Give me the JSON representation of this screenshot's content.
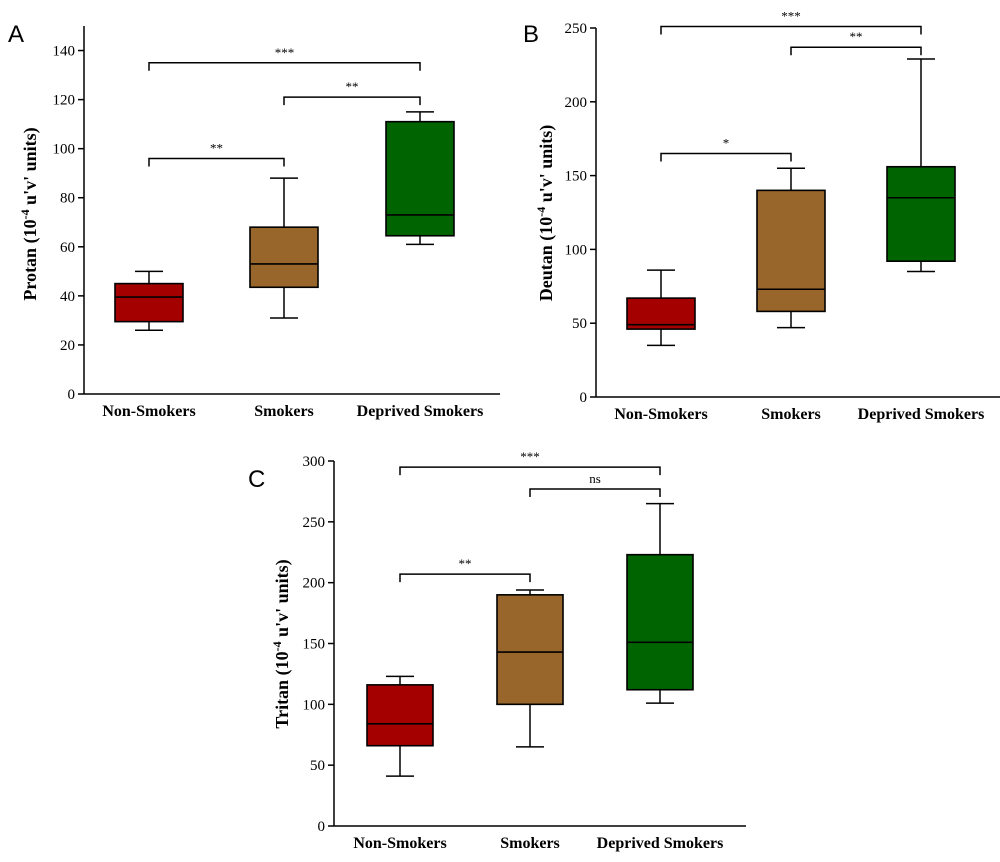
{
  "colors": {
    "Non-Smokers": "#a50000",
    "Smokers": "#98652a",
    "Deprived Smokers": "#006400"
  },
  "chart_data": [
    {
      "panel": "A",
      "type": "box",
      "ylabel": "Protan (10",
      "ylabel_sup": "-4",
      "ylabel_rest": " u'v' units)",
      "categories": [
        "Non-Smokers",
        "Smokers",
        "Deprived Smokers"
      ],
      "ylim": [
        0,
        150
      ],
      "yticks": [
        0,
        20,
        40,
        60,
        80,
        100,
        120,
        140
      ],
      "boxes": [
        {
          "name": "Non-Smokers",
          "min": 26,
          "q1": 29.5,
          "median": 39.5,
          "q3": 45,
          "max": 50
        },
        {
          "name": "Smokers",
          "min": 31,
          "q1": 43.5,
          "median": 53,
          "q3": 68,
          "max": 88
        },
        {
          "name": "Deprived Smokers",
          "min": 61,
          "q1": 64.5,
          "median": 73,
          "q3": 111,
          "max": 115
        }
      ],
      "comparisons": [
        {
          "from": 0,
          "to": 1,
          "y": 96,
          "label": "**"
        },
        {
          "from": 1,
          "to": 2,
          "y": 121,
          "label": "**"
        },
        {
          "from": 0,
          "to": 2,
          "y": 135,
          "label": "***"
        }
      ]
    },
    {
      "panel": "B",
      "type": "box",
      "ylabel": "Deutan (10",
      "ylabel_sup": "-4",
      "ylabel_rest": " u'v' units)",
      "categories": [
        "Non-Smokers",
        "Smokers",
        "Deprived Smokers"
      ],
      "ylim": [
        0,
        250
      ],
      "yticks": [
        0,
        50,
        100,
        150,
        200,
        250
      ],
      "boxes": [
        {
          "name": "Non-Smokers",
          "min": 35,
          "q1": 46,
          "median": 49,
          "q3": 67,
          "max": 86
        },
        {
          "name": "Smokers",
          "min": 47,
          "q1": 58,
          "median": 73,
          "q3": 140,
          "max": 155
        },
        {
          "name": "Deprived Smokers",
          "min": 85,
          "q1": 92,
          "median": 135,
          "q3": 156,
          "max": 229
        }
      ],
      "comparisons": [
        {
          "from": 0,
          "to": 1,
          "y": 165,
          "label": "*"
        },
        {
          "from": 1,
          "to": 2,
          "y": 237,
          "label": "**"
        },
        {
          "from": 0,
          "to": 2,
          "y": 251,
          "label": "***"
        }
      ]
    },
    {
      "panel": "C",
      "type": "box",
      "ylabel": "Tritan (10",
      "ylabel_sup": "-4",
      "ylabel_rest": " u'v' units)",
      "categories": [
        "Non-Smokers",
        "Smokers",
        "Deprived Smokers"
      ],
      "ylim": [
        0,
        300
      ],
      "yticks": [
        0,
        50,
        100,
        150,
        200,
        250,
        300
      ],
      "boxes": [
        {
          "name": "Non-Smokers",
          "min": 41,
          "q1": 66,
          "median": 84,
          "q3": 116,
          "max": 123
        },
        {
          "name": "Smokers",
          "min": 65,
          "q1": 100,
          "median": 143,
          "q3": 190,
          "max": 194
        },
        {
          "name": "Deprived Smokers",
          "min": 101,
          "q1": 112,
          "median": 151,
          "q3": 223,
          "max": 265
        }
      ],
      "comparisons": [
        {
          "from": 0,
          "to": 1,
          "y": 207,
          "label": "**"
        },
        {
          "from": 1,
          "to": 2,
          "y": 277,
          "label": "ns"
        },
        {
          "from": 0,
          "to": 2,
          "y": 295,
          "label": "***"
        }
      ]
    }
  ]
}
